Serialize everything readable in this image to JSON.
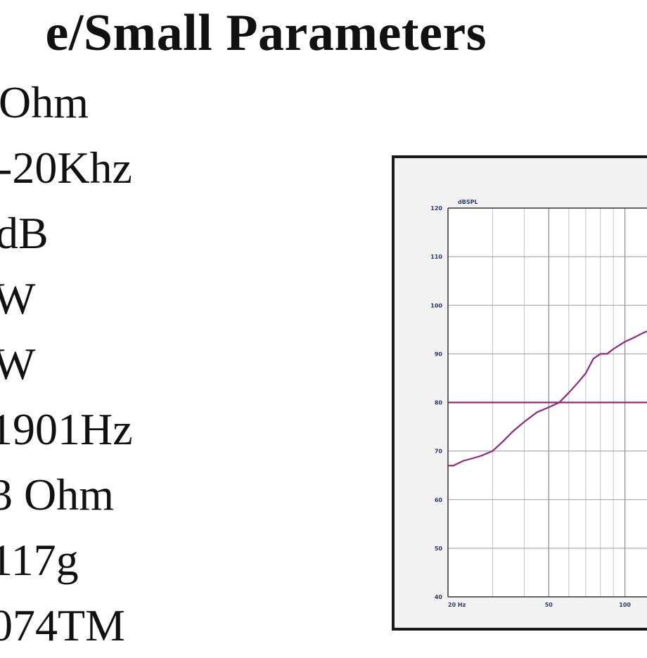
{
  "title": "e/Small Parameters",
  "parameters": [
    {
      "text": "Ohm"
    },
    {
      "text": "-20Khz"
    },
    {
      "text": "dB"
    },
    {
      "text": "W"
    },
    {
      "text": "W"
    },
    {
      "text": "1901Hz"
    },
    {
      "text": "3 Ohm"
    },
    {
      "text": "117g"
    },
    {
      "text": "074TM"
    }
  ],
  "chart_data": {
    "type": "line",
    "ylabel": "dBSPL",
    "x_scale": "log",
    "xlim": [
      20,
      200
    ],
    "ylim": [
      40,
      120
    ],
    "y_ticks": [
      40,
      50,
      60,
      70,
      80,
      90,
      100,
      110,
      120
    ],
    "y_tick_labels": [
      "40",
      "50",
      "60",
      "70",
      "80",
      "90",
      "100",
      "110",
      "120"
    ],
    "x_ticks": [
      20,
      50,
      100
    ],
    "x_tick_labels": [
      "20 Hz",
      "50",
      "100"
    ],
    "grid": true,
    "series": [
      {
        "color": "#8a2a7a",
        "x": [
          20,
          21,
          22,
          23,
          25,
          27,
          30,
          33,
          36,
          40,
          45,
          50,
          55,
          60,
          65,
          70,
          75,
          80,
          85,
          90,
          100,
          110,
          120,
          130
        ],
        "y": [
          67,
          67,
          67.5,
          68,
          68.5,
          69,
          70,
          72,
          74,
          76,
          78,
          79,
          80,
          82,
          84,
          86,
          89,
          90,
          90,
          91,
          92.5,
          93.5,
          94.5,
          95
        ]
      },
      {
        "color": "#8a2a7a",
        "x": [
          20,
          200
        ],
        "y": [
          80,
          80
        ]
      }
    ]
  }
}
